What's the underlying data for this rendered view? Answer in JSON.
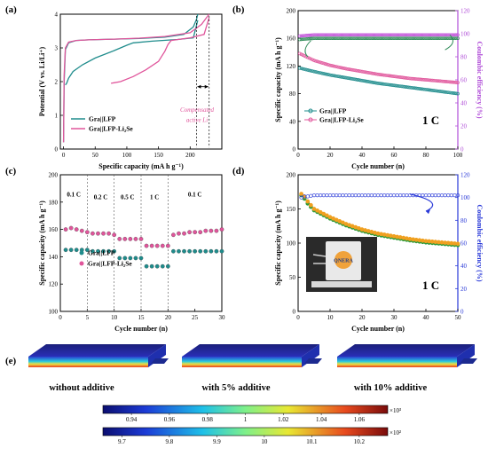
{
  "chart_data": [
    {
      "panel": "(a)",
      "type": "line",
      "xlabel": "Specific capacity (mA h g⁻¹)",
      "ylabel": "Potential (V vs. Li/Li⁺)",
      "xlim": [
        -5,
        250
      ],
      "ylim": [
        0,
        4
      ],
      "xticks": [
        0,
        50,
        100,
        150,
        200
      ],
      "yticks": [
        0,
        1,
        2,
        3,
        4
      ],
      "annotation": [
        "Compensated",
        "active Li"
      ],
      "series": [
        {
          "name": "Gra||LFP",
          "color": "#1f8c8c",
          "charge": {
            "x": [
              0,
              1,
              3,
              8,
              20,
              40,
              80,
              120,
              160,
              190,
              205,
              210,
              212
            ],
            "y": [
              0.2,
              2.0,
              2.95,
              3.15,
              3.22,
              3.24,
              3.26,
              3.28,
              3.32,
              3.4,
              3.62,
              3.85,
              4.0
            ]
          },
          "discharge": {
            "x": [
              212,
              205,
              180,
              140,
              110,
              100,
              80,
              50,
              30,
              15,
              8,
              5,
              3
            ],
            "y": [
              3.82,
              3.3,
              3.25,
              3.2,
              3.15,
              3.08,
              2.92,
              2.7,
              2.5,
              2.3,
              2.1,
              1.95,
              1.9
            ]
          }
        },
        {
          "name": "Gra||LFP-Li₂Se",
          "color": "#e0559b",
          "charge": {
            "x": [
              0,
              1,
              3,
              8,
              20,
              40,
              80,
              120,
              160,
              200,
              218,
              225,
              230
            ],
            "y": [
              0.2,
              2.2,
              3.0,
              3.17,
              3.22,
              3.24,
              3.26,
              3.29,
              3.34,
              3.45,
              3.7,
              3.88,
              4.0
            ]
          },
          "discharge": {
            "x": [
              230,
              222,
              200,
              170,
              165,
              160,
              150,
              130,
              110,
              90,
              75
            ],
            "y": [
              3.9,
              3.4,
              3.3,
              3.22,
              3.1,
              2.9,
              2.6,
              2.35,
              2.15,
              2.0,
              1.95
            ]
          }
        }
      ]
    },
    {
      "panel": "(b)",
      "type": "scatter",
      "xlabel": "Cycle number (n)",
      "ylabel": "Specific capacity (mA h g⁻¹)",
      "ylabel_right": "Coulombic efficiency (%)",
      "xlim": [
        0,
        100
      ],
      "ylim": [
        0,
        200
      ],
      "ylim_right": [
        0,
        120
      ],
      "xticks": [
        0,
        20,
        40,
        60,
        80,
        100
      ],
      "yticks": [
        0,
        40,
        80,
        120,
        160,
        200
      ],
      "yticks_right": [
        0,
        20,
        40,
        60,
        80,
        100,
        120
      ],
      "rate_label": "1 C",
      "series": [
        {
          "name": "Gra||LFP",
          "color": "#1f8c8c",
          "x": [
            1,
            10,
            20,
            30,
            40,
            50,
            60,
            70,
            80,
            90,
            100
          ],
          "y": [
            117,
            112,
            107,
            103,
            99,
            95,
            92,
            89,
            86,
            83,
            80
          ]
        },
        {
          "name": "Gra||LFP-Li₂Se",
          "color": "#e0559b",
          "x": [
            1,
            10,
            20,
            30,
            40,
            50,
            60,
            70,
            80,
            90,
            100
          ],
          "y": [
            138,
            128,
            121,
            116,
            112,
            108,
            105,
            102,
            100,
            98,
            96
          ]
        },
        {
          "name": "CE Gra||LFP",
          "color": "#2e8b57",
          "axis": "right",
          "x": [
            1,
            10,
            20,
            30,
            40,
            50,
            60,
            70,
            80,
            90,
            100
          ],
          "y": [
            95,
            96,
            96,
            96,
            96,
            96,
            96,
            96,
            96,
            96,
            96
          ]
        },
        {
          "name": "CE Gra||LFP-Li₂Se",
          "color": "#c04fd8",
          "axis": "right",
          "x": [
            1,
            10,
            20,
            30,
            40,
            50,
            60,
            70,
            80,
            90,
            100
          ],
          "y": [
            98,
            99,
            99,
            99,
            99,
            99,
            99,
            99,
            99,
            99,
            99
          ]
        }
      ]
    },
    {
      "panel": "(c)",
      "type": "scatter",
      "xlabel": "Cycle number (n)",
      "ylabel": "Specific capacity (mA h g⁻¹)",
      "xlim": [
        0,
        30
      ],
      "ylim": [
        100,
        200
      ],
      "xticks": [
        0,
        5,
        10,
        15,
        20,
        25,
        30
      ],
      "yticks": [
        100,
        120,
        140,
        160,
        180,
        200
      ],
      "rate_labels": [
        "0.1 C",
        "0.2 C",
        "0.5 C",
        "1 C",
        "0.1 C"
      ],
      "series": [
        {
          "name": "Gra||LFP",
          "color": "#1f8c8c",
          "y": [
            145,
            145,
            145,
            145,
            145,
            144,
            144,
            144,
            144,
            144,
            139,
            139,
            139,
            139,
            139,
            133,
            133,
            133,
            133,
            133,
            144,
            144,
            144,
            144,
            144,
            144,
            144,
            144,
            144,
            144
          ]
        },
        {
          "name": "Gra||LFP-Li₂Se",
          "color": "#e0559b",
          "y": [
            160,
            161,
            160,
            159,
            158,
            157,
            157,
            157,
            157,
            156,
            153,
            153,
            153,
            153,
            153,
            148,
            148,
            148,
            148,
            148,
            156,
            157,
            157,
            158,
            158,
            158,
            159,
            159,
            159,
            160
          ]
        }
      ]
    },
    {
      "panel": "(d)",
      "type": "scatter",
      "xlabel": "Cycle number (n)",
      "ylabel": "Specific capacity (mA h g⁻¹)",
      "ylabel_right": "Coulombic efficiency (%)",
      "xlim": [
        0,
        50
      ],
      "ylim": [
        0,
        200
      ],
      "ylim_right": [
        0,
        120
      ],
      "xticks": [
        0,
        10,
        20,
        30,
        40,
        50
      ],
      "yticks": [
        0,
        50,
        100,
        150,
        200
      ],
      "yticks_right": [
        0,
        20,
        40,
        60,
        80,
        100,
        120
      ],
      "rate_label": "1 C",
      "inset_text": "QNERA",
      "series": [
        {
          "name": "capacity (green)",
          "color": "#2e9a3a",
          "x": [
            1,
            2,
            3,
            5,
            10,
            15,
            20,
            25,
            30,
            35,
            40,
            45,
            50
          ],
          "y": [
            170,
            165,
            158,
            148,
            136,
            126,
            118,
            112,
            108,
            104,
            101,
            99,
            97
          ]
        },
        {
          "name": "capacity (orange)",
          "color": "#f0a020",
          "x": [
            1,
            2,
            3,
            5,
            10,
            15,
            20,
            25,
            30,
            35,
            40,
            45,
            50
          ],
          "y": [
            172,
            168,
            161,
            150,
            138,
            128,
            120,
            114,
            110,
            106,
            103,
            101,
            99
          ]
        },
        {
          "name": "Coulombic efficiency",
          "color": "#2a3ad8",
          "axis": "right",
          "x": [
            1,
            2,
            3,
            5,
            10,
            15,
            20,
            25,
            30,
            35,
            40,
            45,
            50
          ],
          "y": [
            100,
            101,
            101,
            102,
            102,
            102,
            102,
            102,
            102,
            102,
            102,
            102,
            102
          ]
        }
      ]
    }
  ],
  "panel_e": {
    "label": "(e)",
    "captions": [
      "without additive",
      "with 5% additive",
      "with 10% additive"
    ],
    "colorbar_top": {
      "ticks": [
        "0.94",
        "0.96",
        "0.98",
        "1",
        "1.02",
        "1.04",
        "1.06"
      ],
      "exponent": "×10³"
    },
    "colorbar_bottom": {
      "ticks": [
        "9.7",
        "9.8",
        "9.9",
        "10",
        "10.1",
        "10.2"
      ],
      "exponent": "×10²"
    }
  }
}
